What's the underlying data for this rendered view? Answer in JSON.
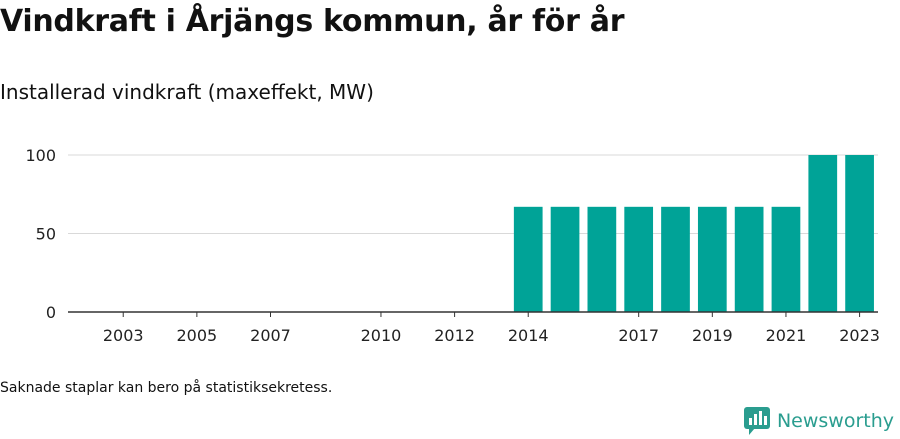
{
  "title": "Vindkraft i Årjängs kommun, år för år",
  "subtitle": "Installerad vindkraft (maxeffekt, MW)",
  "footnote": "Saknade staplar kan bero på statistiksekretess.",
  "brand": {
    "name": "Newsworthy",
    "icon": "bar-chart-speech-bubble-icon",
    "color": "#2a9d8f"
  },
  "chart_data": {
    "type": "bar",
    "bar_color": "#00a397",
    "categories": [
      "2002",
      "2003",
      "2004",
      "2005",
      "2006",
      "2007",
      "2008",
      "2009",
      "2010",
      "2011",
      "2012",
      "2013",
      "2014",
      "2015",
      "2016",
      "2017",
      "2018",
      "2019",
      "2020",
      "2021",
      "2022",
      "2023"
    ],
    "values": [
      null,
      null,
      null,
      null,
      null,
      null,
      null,
      null,
      null,
      null,
      null,
      null,
      67,
      67,
      67,
      67,
      67,
      67,
      67,
      67,
      100,
      100
    ],
    "x_tick_labels": [
      "2003",
      "2005",
      "2007",
      "2010",
      "2012",
      "2014",
      "2017",
      "2019",
      "2021",
      "2023"
    ],
    "y_ticks": [
      0,
      50,
      100
    ],
    "ylim": [
      0,
      100
    ],
    "grid": true,
    "xlabel": "",
    "ylabel": ""
  }
}
